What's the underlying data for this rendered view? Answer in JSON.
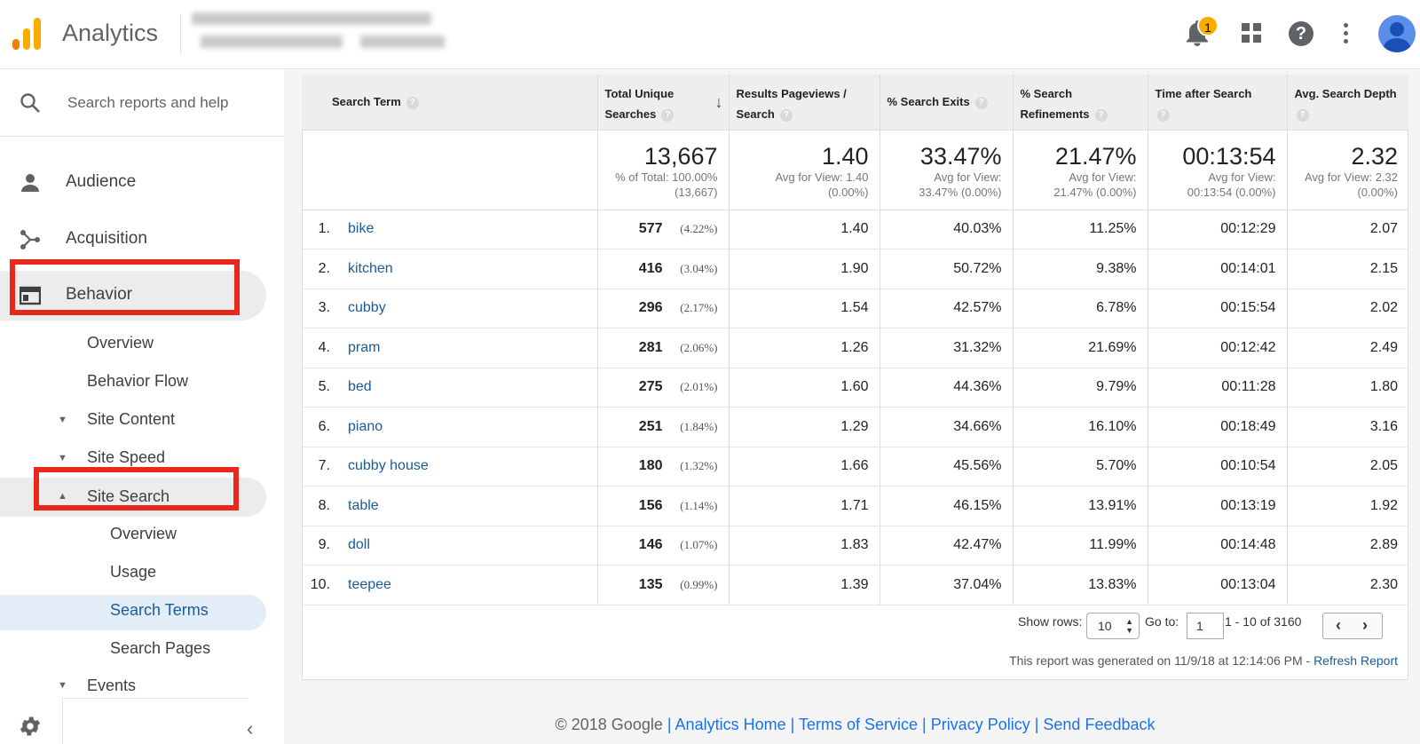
{
  "header": {
    "app_title": "Analytics",
    "notification_count": "1"
  },
  "sidebar": {
    "search_placeholder": "Search reports and help",
    "items": [
      {
        "label": "Audience"
      },
      {
        "label": "Acquisition"
      },
      {
        "label": "Behavior"
      }
    ],
    "behavior_sub": {
      "overview": "Overview",
      "behavior_flow": "Behavior Flow",
      "site_content": "Site Content",
      "site_speed": "Site Speed",
      "site_search": "Site Search",
      "site_search_sub": {
        "overview": "Overview",
        "usage": "Usage",
        "search_terms": "Search Terms",
        "search_pages": "Search Pages"
      },
      "events": "Events"
    }
  },
  "table": {
    "columns": [
      "Search Term",
      "Total Unique Searches",
      "Results Pageviews / Search",
      "% Search Exits",
      "% Search Refinements",
      "Time after Search",
      "Avg. Search Depth"
    ],
    "column_lines": [
      [
        "Search Term"
      ],
      [
        "Total Unique",
        "Searches"
      ],
      [
        "Results Pageviews /",
        "Search"
      ],
      [
        "% Search Exits"
      ],
      [
        "% Search",
        "Refinements"
      ],
      [
        "Time after Search"
      ],
      [
        "Avg. Search Depth"
      ]
    ],
    "totals": [
      {
        "value": "13,667",
        "sub1": "% of Total: 100.00%",
        "sub2": "(13,667)"
      },
      {
        "value": "1.40",
        "sub1": "Avg for View: 1.40",
        "sub2": "(0.00%)"
      },
      {
        "value": "33.47%",
        "sub1": "Avg for View:",
        "sub2": "33.47% (0.00%)"
      },
      {
        "value": "21.47%",
        "sub1": "Avg for View:",
        "sub2": "21.47% (0.00%)"
      },
      {
        "value": "00:13:54",
        "sub1": "Avg for View:",
        "sub2": "00:13:54 (0.00%)"
      },
      {
        "value": "2.32",
        "sub1": "Avg for View: 2.32",
        "sub2": "(0.00%)"
      }
    ],
    "rows": [
      {
        "idx": "1.",
        "term": "bike",
        "unique": "577",
        "pct": "(4.22%)",
        "pageviews": "1.40",
        "exits": "40.03%",
        "refinements": "11.25%",
        "time": "00:12:29",
        "depth": "2.07"
      },
      {
        "idx": "2.",
        "term": "kitchen",
        "unique": "416",
        "pct": "(3.04%)",
        "pageviews": "1.90",
        "exits": "50.72%",
        "refinements": "9.38%",
        "time": "00:14:01",
        "depth": "2.15"
      },
      {
        "idx": "3.",
        "term": "cubby",
        "unique": "296",
        "pct": "(2.17%)",
        "pageviews": "1.54",
        "exits": "42.57%",
        "refinements": "6.78%",
        "time": "00:15:54",
        "depth": "2.02"
      },
      {
        "idx": "4.",
        "term": "pram",
        "unique": "281",
        "pct": "(2.06%)",
        "pageviews": "1.26",
        "exits": "31.32%",
        "refinements": "21.69%",
        "time": "00:12:42",
        "depth": "2.49"
      },
      {
        "idx": "5.",
        "term": "bed",
        "unique": "275",
        "pct": "(2.01%)",
        "pageviews": "1.60",
        "exits": "44.36%",
        "refinements": "9.79%",
        "time": "00:11:28",
        "depth": "1.80"
      },
      {
        "idx": "6.",
        "term": "piano",
        "unique": "251",
        "pct": "(1.84%)",
        "pageviews": "1.29",
        "exits": "34.66%",
        "refinements": "16.10%",
        "time": "00:18:49",
        "depth": "3.16"
      },
      {
        "idx": "7.",
        "term": "cubby house",
        "unique": "180",
        "pct": "(1.32%)",
        "pageviews": "1.66",
        "exits": "45.56%",
        "refinements": "5.70%",
        "time": "00:10:54",
        "depth": "2.05"
      },
      {
        "idx": "8.",
        "term": "table",
        "unique": "156",
        "pct": "(1.14%)",
        "pageviews": "1.71",
        "exits": "46.15%",
        "refinements": "13.91%",
        "time": "00:13:19",
        "depth": "1.92"
      },
      {
        "idx": "9.",
        "term": "doll",
        "unique": "146",
        "pct": "(1.07%)",
        "pageviews": "1.83",
        "exits": "42.47%",
        "refinements": "11.99%",
        "time": "00:14:48",
        "depth": "2.89"
      },
      {
        "idx": "10.",
        "term": "teepee",
        "unique": "135",
        "pct": "(0.99%)",
        "pageviews": "1.39",
        "exits": "37.04%",
        "refinements": "13.83%",
        "time": "00:13:04",
        "depth": "2.30"
      }
    ]
  },
  "pagination": {
    "show_rows_label": "Show rows:",
    "show_rows_value": "10",
    "goto_label": "Go to:",
    "goto_value": "1",
    "range": "1 - 10 of 3160"
  },
  "report": {
    "generated_text": "This report was generated on 11/9/18 at 12:14:06 PM - ",
    "refresh_link": "Refresh Report"
  },
  "footer": {
    "copyright": "© 2018 Google",
    "links": [
      "Analytics Home",
      "Terms of Service",
      "Privacy Policy",
      "Send Feedback"
    ],
    "separator": " | "
  },
  "colors": {
    "highlight_red": "#e8281e",
    "link_blue": "#1a5b99",
    "footer_link": "#1a73e8",
    "logo_orange": "#F57C00",
    "logo_yellow": "#F9AB00"
  },
  "icons": [
    "analytics-logo-icon",
    "bell-icon",
    "apps-grid-icon",
    "help-icon",
    "more-vert-icon",
    "avatar-icon",
    "search-icon",
    "person-icon",
    "acquisition-icon",
    "behavior-icon",
    "gear-icon",
    "collapse-chevron-icon",
    "sort-down-arrow-icon",
    "help-circle-icon"
  ]
}
